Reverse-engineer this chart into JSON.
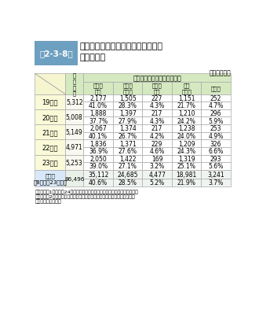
{
  "title_box_text": "第2-3-8表",
  "title_text": "各年度の消防職員委員会審議件数及\nび審議結果",
  "subtitle": "（各年度中）",
  "header_col1": "審\n議\n件\n数",
  "header_group": "審　議　結　果　の　区　分",
  "col_headers": [
    "実施が\n適当",
    "諸課題\nを検討",
    "実施は\n困難",
    "現行\nどおり",
    "その他"
  ],
  "rows": [
    {
      "label": "19年度",
      "total": "5,312",
      "vals": [
        "2,177",
        "1,505",
        "227",
        "1,151",
        "252"
      ],
      "pcts": [
        "41.0%",
        "28.3%",
        "4.3%",
        "21.7%",
        "4.7%"
      ]
    },
    {
      "label": "20年度",
      "total": "5,008",
      "vals": [
        "1,888",
        "1,397",
        "217",
        "1,210",
        "296"
      ],
      "pcts": [
        "37.7%",
        "27.9%",
        "4.3%",
        "24.2%",
        "5.9%"
      ]
    },
    {
      "label": "21年度",
      "total": "5,149",
      "vals": [
        "2,067",
        "1,374",
        "217",
        "1,238",
        "253"
      ],
      "pcts": [
        "40.1%",
        "26.7%",
        "4.2%",
        "24.0%",
        "4.9%"
      ]
    },
    {
      "label": "22年度",
      "total": "4,971",
      "vals": [
        "1,836",
        "1,371",
        "229",
        "1,209",
        "326"
      ],
      "pcts": [
        "36.9%",
        "27.6%",
        "4.6%",
        "24.3%",
        "6.6%"
      ]
    },
    {
      "label": "23年度",
      "total": "5,253",
      "vals": [
        "2,050",
        "1,422",
        "169",
        "1,319",
        "293"
      ],
      "pcts": [
        "39.0%",
        "27.1%",
        "3.2%",
        "25.1%",
        "5.6%"
      ]
    }
  ],
  "summary_label": "累　計\n（8年度〜23年度）",
  "summary_total": "86,496",
  "summary_vals": [
    "35,112",
    "24,685",
    "4,477",
    "18,981",
    "3,241"
  ],
  "summary_pcts": [
    "40.6%",
    "28.5%",
    "5.2%",
    "21.9%",
    "3.7%"
  ],
  "footnote_line1": "（備考）　1　「平成24年度消防職員委員会の運営状況調査結果」より作成",
  "footnote_line2": "　　　　　2　小数点第二位を四捨五入のため、合計等が一致しない場合が",
  "footnote_line3": "　　　　　　ある。",
  "color_title_bg": "#6d9fc0",
  "color_header_green": "#d4e9c0",
  "color_diag_yellow": "#f5f5d0",
  "color_row_label_yellow": "#fafad8",
  "color_summary_blue": "#d8e8f8",
  "color_white": "#ffffff",
  "color_data_bg": "#ffffff",
  "color_total_bg": "#f0f0f0",
  "color_border": "#aaaaaa"
}
